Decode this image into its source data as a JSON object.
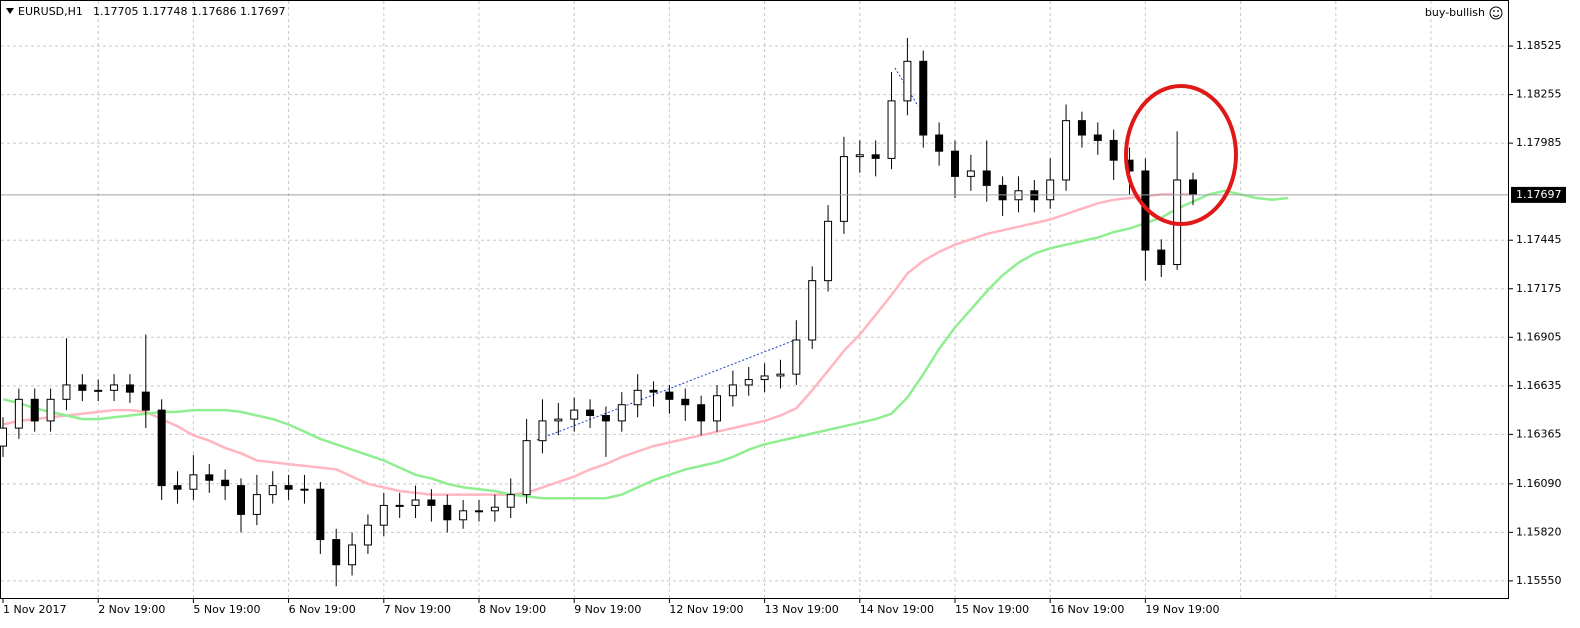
{
  "chart_data": {
    "type": "candlestick",
    "symbol": "EURUSD,H1",
    "quote": "1.17705 1.17748 1.17686 1.17697",
    "expert": "buy-bullish",
    "ylim": [
      1.15455,
      1.18781
    ],
    "yticks": [
      1.18525,
      1.18255,
      1.17985,
      1.17445,
      1.17175,
      1.16905,
      1.16635,
      1.16365,
      {
        "value": 1.1609,
        "label": "1.16090"
      },
      {
        "value": 1.1582,
        "label": "1.15820"
      },
      {
        "value": 1.1555,
        "label": "1.15550"
      }
    ],
    "grid": true,
    "last_price": 1.17697,
    "categories": [
      "1 Nov 2017",
      null,
      null,
      null,
      null,
      null,
      "2 Nov 19:00",
      null,
      null,
      null,
      null,
      null,
      "5 Nov 19:00",
      null,
      null,
      null,
      null,
      null,
      "6 Nov 19:00",
      null,
      null,
      null,
      null,
      null,
      "7 Nov 19:00",
      null,
      null,
      null,
      null,
      null,
      "8 Nov 19:00",
      null,
      null,
      null,
      null,
      null,
      "9 Nov 19:00",
      null,
      null,
      null,
      null,
      null,
      "12 Nov 19:00",
      null,
      null,
      null,
      null,
      null,
      "13 Nov 19:00",
      null,
      null,
      null,
      null,
      null,
      "14 Nov 19:00",
      null,
      null,
      null,
      null,
      null,
      "15 Nov 19:00",
      null,
      null,
      null,
      null,
      null,
      "16 Nov 19:00",
      null,
      null,
      null,
      null,
      null,
      "19 Nov 19:00",
      null,
      null,
      null,
      null,
      null,
      null,
      null,
      null,
      null
    ],
    "up_color": "#ffffff",
    "down_color": "#000000",
    "wick_color": "#000000",
    "open": [
      1.163,
      1.164,
      1.1656,
      1.1644,
      1.1656,
      1.1664,
      1.1661,
      1.1661,
      1.1664,
      1.166,
      1.165,
      1.1608,
      1.1606,
      1.1614,
      1.1611,
      1.1608,
      1.1592,
      1.1603,
      1.1608,
      1.1606,
      1.1606,
      1.1578,
      1.1564,
      1.1575,
      1.1586,
      1.1597,
      1.1597,
      1.16,
      1.1597,
      1.1589,
      1.1594,
      1.1594,
      1.1596,
      1.1603,
      1.1633,
      1.1644,
      1.1645,
      1.165,
      1.1647,
      1.1644,
      1.1653,
      1.1661,
      1.166,
      1.1656,
      1.1653,
      1.1644,
      1.1658,
      1.1664,
      1.1667,
      1.1669,
      1.167,
      1.1689,
      1.1722,
      1.1755,
      1.1791,
      1.1792,
      1.179,
      1.1822,
      1.1844,
      1.1803,
      1.1794,
      1.178,
      1.1783,
      1.1775,
      1.1767,
      1.1772,
      1.1767,
      1.1778,
      1.1811,
      1.1803,
      1.18,
      1.1789,
      1.1783,
      1.1739,
      1.1731,
      1.1778,
      null,
      null,
      null,
      null,
      null,
      null
    ],
    "high": [
      1.1646,
      1.1662,
      1.1662,
      1.1662,
      1.169,
      1.167,
      1.1667,
      1.167,
      1.167,
      1.1692,
      1.1656,
      1.1616,
      1.1625,
      1.162,
      1.1617,
      1.1612,
      1.1614,
      1.1616,
      1.1614,
      1.1614,
      1.161,
      1.1584,
      1.1582,
      1.1592,
      1.1604,
      1.1604,
      1.1608,
      1.1606,
      1.1603,
      1.16,
      1.16,
      1.1603,
      1.1612,
      1.1645,
      1.1656,
      1.1654,
      1.1657,
      1.1656,
      1.1652,
      1.166,
      1.167,
      1.1666,
      1.1664,
      1.1662,
      1.1658,
      1.1664,
      1.1672,
      1.1674,
      1.1676,
      1.1678,
      1.17,
      1.173,
      1.1764,
      1.1802,
      1.18,
      1.18,
      1.1838,
      1.1857,
      1.185,
      1.181,
      1.18,
      1.1792,
      1.18,
      1.178,
      1.178,
      1.1778,
      1.179,
      1.182,
      1.1816,
      1.181,
      1.1806,
      1.1796,
      1.179,
      1.1745,
      1.1805,
      1.1782,
      null,
      null,
      null,
      null,
      null,
      null
    ],
    "low": [
      1.1624,
      1.1634,
      1.1638,
      1.1638,
      1.165,
      1.1655,
      1.1655,
      1.1655,
      1.1654,
      1.164,
      1.16,
      1.1598,
      1.16,
      1.1604,
      1.16,
      1.1582,
      1.1586,
      1.1598,
      1.16,
      1.1598,
      1.157,
      1.1552,
      1.1558,
      1.157,
      1.158,
      1.159,
      1.159,
      1.1588,
      1.1582,
      1.1584,
      1.1588,
      1.1588,
      1.159,
      1.1598,
      1.1626,
      1.1636,
      1.1638,
      1.164,
      1.1624,
      1.1638,
      1.1646,
      1.1652,
      1.1648,
      1.1644,
      1.1636,
      1.1638,
      1.1652,
      1.1658,
      1.166,
      1.1662,
      1.1664,
      1.1684,
      1.1716,
      1.1748,
      1.1782,
      1.178,
      1.1784,
      1.1814,
      1.1796,
      1.1786,
      1.1768,
      1.1772,
      1.1766,
      1.1758,
      1.176,
      1.176,
      1.1762,
      1.1772,
      1.1796,
      1.1792,
      1.1778,
      1.177,
      1.1722,
      1.1724,
      1.1728,
      1.1764,
      null,
      null,
      null,
      null,
      null,
      null
    ],
    "close": [
      1.164,
      1.1656,
      1.1644,
      1.1656,
      1.1664,
      1.1661,
      1.1661,
      1.1664,
      1.166,
      1.165,
      1.1608,
      1.1606,
      1.1614,
      1.1611,
      1.1608,
      1.1592,
      1.1603,
      1.1608,
      1.1606,
      1.1606,
      1.1578,
      1.1564,
      1.1575,
      1.1586,
      1.1597,
      1.1597,
      1.16,
      1.1597,
      1.1589,
      1.1594,
      1.1594,
      1.1596,
      1.1603,
      1.1633,
      1.1644,
      1.1645,
      1.165,
      1.1647,
      1.1644,
      1.1653,
      1.1661,
      1.166,
      1.1656,
      1.1653,
      1.1644,
      1.1658,
      1.1664,
      1.1667,
      1.1669,
      1.167,
      1.1689,
      1.1722,
      1.1755,
      1.1791,
      1.1792,
      1.179,
      1.1822,
      1.1844,
      1.1803,
      1.1794,
      1.178,
      1.1783,
      1.1775,
      1.1767,
      1.1772,
      1.1767,
      1.1778,
      1.1811,
      1.1803,
      1.18,
      1.1789,
      1.1783,
      1.1739,
      1.1731,
      1.1778,
      1.177,
      null,
      null,
      null,
      null,
      null,
      null
    ],
    "moving_averages": [
      {
        "color": "#ffb6c1",
        "values": [
          1.1642,
          1.1644,
          1.1645,
          1.1646,
          1.1647,
          1.1648,
          1.1649,
          1.165,
          1.165,
          1.1649,
          1.1645,
          1.1641,
          1.1636,
          1.1633,
          1.1629,
          1.1626,
          1.1622,
          1.1621,
          1.162,
          1.1619,
          1.1618,
          1.1617,
          1.1613,
          1.1609,
          1.1607,
          1.1605,
          1.1604,
          1.1603,
          1.1603,
          1.1603,
          1.1603,
          1.1603,
          1.1603,
          1.1604,
          1.1607,
          1.161,
          1.1613,
          1.1617,
          1.162,
          1.1624,
          1.1627,
          1.163,
          1.1632,
          1.1634,
          1.1636,
          1.1638,
          1.164,
          1.1642,
          1.1644,
          1.1647,
          1.1651,
          1.1661,
          1.1672,
          1.1683,
          1.1692,
          1.1703,
          1.1714,
          1.1726,
          1.1733,
          1.1738,
          1.1742,
          1.1745,
          1.1748,
          1.175,
          1.1752,
          1.1754,
          1.1756,
          1.1759,
          1.1762,
          1.1765,
          1.1767,
          1.1768,
          1.1769,
          1.177,
          1.177,
          1.177,
          null,
          null,
          null,
          null,
          null,
          null
        ]
      },
      {
        "color": "#90ee90",
        "values": [
          1.1656,
          1.1654,
          1.1651,
          1.1649,
          1.1647,
          1.1645,
          1.1645,
          1.1646,
          1.1647,
          1.1648,
          1.1649,
          1.1649,
          1.165,
          1.165,
          1.165,
          1.1649,
          1.1647,
          1.1645,
          1.1642,
          1.1638,
          1.1634,
          1.1631,
          1.1628,
          1.1625,
          1.1622,
          1.1618,
          1.1614,
          1.1612,
          1.1609,
          1.1607,
          1.1606,
          1.1605,
          1.1603,
          1.1602,
          1.1601,
          1.1601,
          1.1601,
          1.1601,
          1.1601,
          1.1603,
          1.1607,
          1.1611,
          1.1614,
          1.1617,
          1.1619,
          1.1621,
          1.1624,
          1.1628,
          1.1631,
          1.1633,
          1.1635,
          1.1637,
          1.1639,
          1.1641,
          1.1643,
          1.1645,
          1.1648,
          1.1657,
          1.167,
          1.1684,
          1.1696,
          1.1706,
          1.1716,
          1.1725,
          1.1732,
          1.1737,
          1.174,
          1.1742,
          1.1744,
          1.1746,
          1.1749,
          1.1751,
          1.1754,
          1.1757,
          1.1762,
          1.1766,
          1.177,
          1.1772,
          1.177,
          1.1768,
          1.1767,
          1.1768
        ]
      }
    ]
  }
}
